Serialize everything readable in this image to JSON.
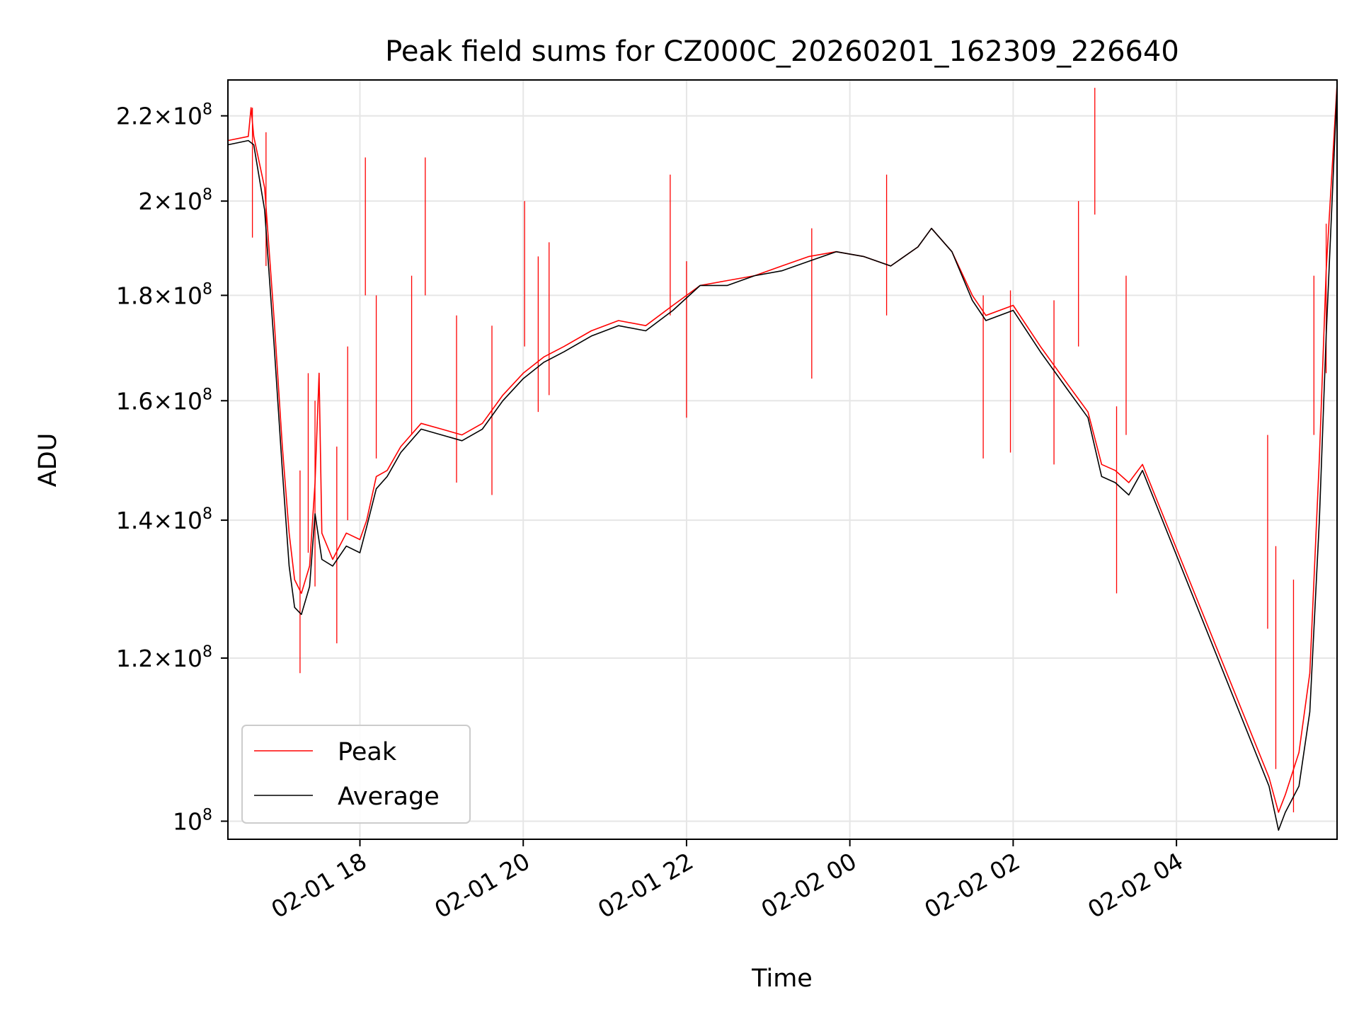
{
  "chart_data": {
    "type": "line",
    "title": "Peak field sums for CZ000C_20260201_162309_226640",
    "xlabel": "Time",
    "ylabel": "ADU",
    "y_scale": "log",
    "grid": true,
    "legend_position": "bottom-left",
    "xlim": [
      "2026-02-01 16:23",
      "2026-02-02 05:58"
    ],
    "ylim": [
      98000000,
      229000000
    ],
    "x_ticks": [
      {
        "value": "2026-02-01 18:00",
        "label": "02-01 18"
      },
      {
        "value": "2026-02-01 20:00",
        "label": "02-01 20"
      },
      {
        "value": "2026-02-01 22:00",
        "label": "02-01 22"
      },
      {
        "value": "2026-02-02 00:00",
        "label": "02-02 00"
      },
      {
        "value": "2026-02-02 02:00",
        "label": "02-02 02"
      },
      {
        "value": "2026-02-02 04:00",
        "label": "02-02 04"
      }
    ],
    "y_ticks": [
      {
        "value": 100000000,
        "mantissa": "",
        "exp": "8",
        "label": "10^8"
      },
      {
        "value": 120000000,
        "mantissa": "1.2",
        "exp": "8",
        "label": "1.2×10^8"
      },
      {
        "value": 140000000,
        "mantissa": "1.4",
        "exp": "8",
        "label": "1.4×10^8"
      },
      {
        "value": 160000000,
        "mantissa": "1.6",
        "exp": "8",
        "label": "1.6×10^8"
      },
      {
        "value": 180000000,
        "mantissa": "1.8",
        "exp": "8",
        "label": "1.8×10^8"
      },
      {
        "value": 200000000,
        "mantissa": "2",
        "exp": "8",
        "label": "2×10^8"
      },
      {
        "value": 220000000,
        "mantissa": "2.2",
        "exp": "8",
        "label": "2.2×10^8"
      }
    ],
    "series": [
      {
        "name": "Peak",
        "color": "#ff0000",
        "points": [
          [
            "2026-02-01 16:23",
            214
          ],
          [
            "2026-02-01 16:38",
            215
          ],
          [
            "2026-02-01 16:40",
            222
          ],
          [
            "2026-02-01 16:42",
            215
          ],
          [
            "2026-02-01 16:50",
            203
          ],
          [
            "2026-02-01 16:57",
            175
          ],
          [
            "2026-02-01 17:03",
            152
          ],
          [
            "2026-02-01 17:08",
            138
          ],
          [
            "2026-02-01 17:12",
            131
          ],
          [
            "2026-02-01 17:17",
            129
          ],
          [
            "2026-02-01 17:23",
            133
          ],
          [
            "2026-02-01 17:27",
            146
          ],
          [
            "2026-02-01 17:30",
            165
          ],
          [
            "2026-02-01 17:32",
            138
          ],
          [
            "2026-02-01 17:40",
            134
          ],
          [
            "2026-02-01 17:50",
            138
          ],
          [
            "2026-02-01 18:00",
            137
          ],
          [
            "2026-02-01 18:05",
            140
          ],
          [
            "2026-02-01 18:12",
            147
          ],
          [
            "2026-02-01 18:20",
            148
          ],
          [
            "2026-02-01 18:30",
            152
          ],
          [
            "2026-02-01 18:45",
            156
          ],
          [
            "2026-02-01 19:00",
            155
          ],
          [
            "2026-02-01 19:15",
            154
          ],
          [
            "2026-02-01 19:30",
            156
          ],
          [
            "2026-02-01 19:45",
            161
          ],
          [
            "2026-02-01 20:00",
            165
          ],
          [
            "2026-02-01 20:15",
            168
          ],
          [
            "2026-02-01 20:30",
            170
          ],
          [
            "2026-02-01 20:50",
            173
          ],
          [
            "2026-02-01 21:10",
            175
          ],
          [
            "2026-02-01 21:30",
            174
          ],
          [
            "2026-02-01 21:50",
            178
          ],
          [
            "2026-02-01 22:10",
            182
          ],
          [
            "2026-02-01 22:30",
            183
          ],
          [
            "2026-02-01 22:50",
            184
          ],
          [
            "2026-02-01 23:10",
            186
          ],
          [
            "2026-02-01 23:30",
            188
          ],
          [
            "2026-02-01 23:50",
            189
          ],
          [
            "2026-02-02 00:10",
            188
          ],
          [
            "2026-02-02 00:30",
            186
          ],
          [
            "2026-02-02 00:50",
            190
          ],
          [
            "2026-02-02 01:00",
            194
          ],
          [
            "2026-02-02 01:15",
            189
          ],
          [
            "2026-02-02 01:30",
            180
          ],
          [
            "2026-02-02 01:40",
            176
          ],
          [
            "2026-02-02 02:00",
            178
          ],
          [
            "2026-02-02 02:20",
            170
          ],
          [
            "2026-02-02 02:40",
            163
          ],
          [
            "2026-02-02 02:55",
            158
          ],
          [
            "2026-02-02 03:05",
            149
          ],
          [
            "2026-02-02 03:15",
            148
          ],
          [
            "2026-02-02 03:25",
            146
          ],
          [
            "2026-02-02 03:35",
            149
          ],
          [
            "2026-02-02 05:08",
            105
          ],
          [
            "2026-02-02 05:15",
            101
          ],
          [
            "2026-02-02 05:20",
            103
          ],
          [
            "2026-02-02 05:30",
            108
          ],
          [
            "2026-02-02 05:38",
            118
          ],
          [
            "2026-02-02 05:45",
            150
          ],
          [
            "2026-02-02 05:50",
            185
          ],
          [
            "2026-02-02 05:58",
            228
          ]
        ],
        "spikes": [
          [
            "2026-02-01 16:41",
            222
          ],
          [
            "2026-02-01 16:51",
            216
          ],
          [
            "2026-02-01 17:16",
            148
          ],
          [
            "2026-02-01 17:22",
            165
          ],
          [
            "2026-02-01 17:27",
            160
          ],
          [
            "2026-02-01 17:43",
            152
          ],
          [
            "2026-02-01 17:51",
            170
          ],
          [
            "2026-02-01 18:04",
            210
          ],
          [
            "2026-02-01 18:12",
            180
          ],
          [
            "2026-02-01 18:38",
            184
          ],
          [
            "2026-02-01 18:48",
            210
          ],
          [
            "2026-02-01 19:11",
            176
          ],
          [
            "2026-02-01 19:37",
            174
          ],
          [
            "2026-02-01 20:01",
            200
          ],
          [
            "2026-02-01 20:11",
            188
          ],
          [
            "2026-02-01 20:19",
            191
          ],
          [
            "2026-02-01 21:48",
            206
          ],
          [
            "2026-02-01 22:00",
            187
          ],
          [
            "2026-02-01 23:32",
            194
          ],
          [
            "2026-02-02 00:27",
            206
          ],
          [
            "2026-02-02 01:38",
            180
          ],
          [
            "2026-02-02 01:58",
            181
          ],
          [
            "2026-02-02 02:30",
            179
          ],
          [
            "2026-02-02 02:48",
            200
          ],
          [
            "2026-02-02 03:00",
            227
          ],
          [
            "2026-02-02 03:16",
            159
          ],
          [
            "2026-02-02 03:23",
            184
          ],
          [
            "2026-02-02 05:07",
            154
          ],
          [
            "2026-02-02 05:13",
            136
          ],
          [
            "2026-02-02 05:26",
            131
          ],
          [
            "2026-02-02 05:41",
            184
          ],
          [
            "2026-02-02 05:50",
            195
          ]
        ]
      },
      {
        "name": "Average",
        "color": "#000000",
        "points": [
          [
            "2026-02-01 16:23",
            213
          ],
          [
            "2026-02-01 16:38",
            214
          ],
          [
            "2026-02-01 16:42",
            213
          ],
          [
            "2026-02-01 16:50",
            198
          ],
          [
            "2026-02-01 16:57",
            170
          ],
          [
            "2026-02-01 17:03",
            148
          ],
          [
            "2026-02-01 17:08",
            133
          ],
          [
            "2026-02-01 17:12",
            127
          ],
          [
            "2026-02-01 17:17",
            126
          ],
          [
            "2026-02-01 17:23",
            130
          ],
          [
            "2026-02-01 17:27",
            141
          ],
          [
            "2026-02-01 17:32",
            134
          ],
          [
            "2026-02-01 17:40",
            133
          ],
          [
            "2026-02-01 17:50",
            136
          ],
          [
            "2026-02-01 18:00",
            135
          ],
          [
            "2026-02-01 18:05",
            139
          ],
          [
            "2026-02-01 18:12",
            145
          ],
          [
            "2026-02-01 18:20",
            147
          ],
          [
            "2026-02-01 18:30",
            151
          ],
          [
            "2026-02-01 18:45",
            155
          ],
          [
            "2026-02-01 19:00",
            154
          ],
          [
            "2026-02-01 19:15",
            153
          ],
          [
            "2026-02-01 19:30",
            155
          ],
          [
            "2026-02-01 19:45",
            160
          ],
          [
            "2026-02-01 20:00",
            164
          ],
          [
            "2026-02-01 20:15",
            167
          ],
          [
            "2026-02-01 20:30",
            169
          ],
          [
            "2026-02-01 20:50",
            172
          ],
          [
            "2026-02-01 21:10",
            174
          ],
          [
            "2026-02-01 21:30",
            173
          ],
          [
            "2026-02-01 21:50",
            177
          ],
          [
            "2026-02-01 22:10",
            182
          ],
          [
            "2026-02-01 22:30",
            182
          ],
          [
            "2026-02-01 22:50",
            184
          ],
          [
            "2026-02-01 23:10",
            185
          ],
          [
            "2026-02-01 23:30",
            187
          ],
          [
            "2026-02-01 23:50",
            189
          ],
          [
            "2026-02-02 00:10",
            188
          ],
          [
            "2026-02-02 00:30",
            186
          ],
          [
            "2026-02-02 00:50",
            190
          ],
          [
            "2026-02-02 01:00",
            194
          ],
          [
            "2026-02-02 01:15",
            189
          ],
          [
            "2026-02-02 01:30",
            179
          ],
          [
            "2026-02-02 01:40",
            175
          ],
          [
            "2026-02-02 02:00",
            177
          ],
          [
            "2026-02-02 02:20",
            169
          ],
          [
            "2026-02-02 02:40",
            162
          ],
          [
            "2026-02-02 02:55",
            157
          ],
          [
            "2026-02-02 03:05",
            147
          ],
          [
            "2026-02-02 03:15",
            146
          ],
          [
            "2026-02-02 03:25",
            144
          ],
          [
            "2026-02-02 03:35",
            148
          ],
          [
            "2026-02-02 05:08",
            104
          ],
          [
            "2026-02-02 05:15",
            99
          ],
          [
            "2026-02-02 05:20",
            101
          ],
          [
            "2026-02-02 05:30",
            104
          ],
          [
            "2026-02-02 05:38",
            113
          ],
          [
            "2026-02-02 05:45",
            140
          ],
          [
            "2026-02-02 05:50",
            172
          ],
          [
            "2026-02-02 05:58",
            227
          ]
        ]
      }
    ],
    "y_values_unit": "millions of ADU"
  }
}
